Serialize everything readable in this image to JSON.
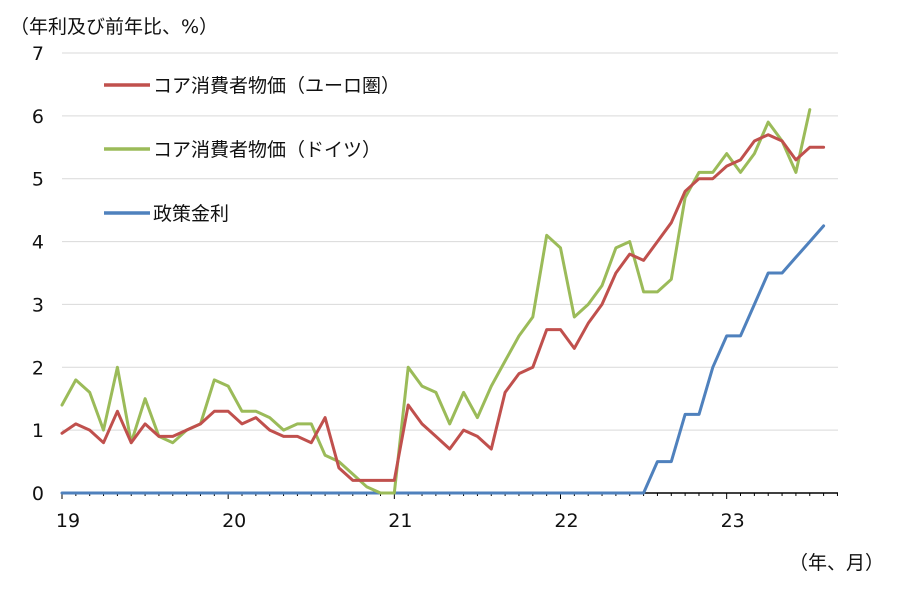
{
  "chart_data": {
    "type": "line",
    "ylabel": "（年利及び前年比、%）",
    "xlabel": "（年、月）",
    "xlim": [
      2019.0,
      2023.67
    ],
    "ylim": [
      0,
      7
    ],
    "yticks": [
      0,
      1,
      2,
      3,
      4,
      5,
      6,
      7
    ],
    "xtick_labels": [
      "19",
      "20",
      "21",
      "22",
      "23"
    ],
    "grid": "horizontal",
    "legend_position": "top-left",
    "series": [
      {
        "name": "コア消費者物価（ユーロ圏）",
        "color": "#c0504d",
        "values": [
          0.95,
          1.1,
          1.0,
          0.8,
          1.3,
          0.8,
          1.1,
          0.9,
          0.9,
          1.0,
          1.1,
          1.3,
          1.3,
          1.1,
          1.2,
          1.0,
          0.9,
          0.9,
          0.8,
          1.2,
          0.4,
          0.2,
          0.2,
          0.2,
          0.2,
          1.4,
          1.1,
          0.9,
          0.7,
          1.0,
          0.9,
          0.7,
          1.6,
          1.9,
          2.0,
          2.6,
          2.6,
          2.3,
          2.7,
          3.0,
          3.5,
          3.8,
          3.7,
          4.0,
          4.3,
          4.8,
          5.0,
          5.0,
          5.2,
          5.3,
          5.6,
          5.7,
          5.6,
          5.3,
          5.5,
          5.5
        ]
      },
      {
        "name": "コア消費者物価（ドイツ）",
        "color": "#9bbb59",
        "values": [
          1.4,
          1.8,
          1.6,
          1.0,
          2.0,
          0.8,
          1.5,
          0.9,
          0.8,
          1.0,
          1.1,
          1.8,
          1.7,
          1.3,
          1.3,
          1.2,
          1.0,
          1.1,
          1.1,
          0.6,
          0.5,
          0.3,
          0.1,
          0.0,
          0.0,
          2.0,
          1.7,
          1.6,
          1.1,
          1.6,
          1.2,
          1.7,
          2.1,
          2.5,
          2.8,
          4.1,
          3.9,
          2.8,
          3.0,
          3.3,
          3.9,
          4.0,
          3.2,
          3.2,
          3.4,
          4.7,
          5.1,
          5.1,
          5.4,
          5.1,
          5.4,
          5.9,
          5.6,
          5.1,
          6.1
        ]
      },
      {
        "name": "政策金利",
        "color": "#4f81bd",
        "values": [
          0,
          0,
          0,
          0,
          0,
          0,
          0,
          0,
          0,
          0,
          0,
          0,
          0,
          0,
          0,
          0,
          0,
          0,
          0,
          0,
          0,
          0,
          0,
          0,
          0,
          0,
          0,
          0,
          0,
          0,
          0,
          0,
          0,
          0,
          0,
          0,
          0,
          0,
          0,
          0,
          0,
          0,
          0,
          0.5,
          0.5,
          1.25,
          1.25,
          2.0,
          2.5,
          2.5,
          3.0,
          3.5,
          3.5,
          3.75,
          4.0,
          4.25
        ]
      }
    ]
  }
}
